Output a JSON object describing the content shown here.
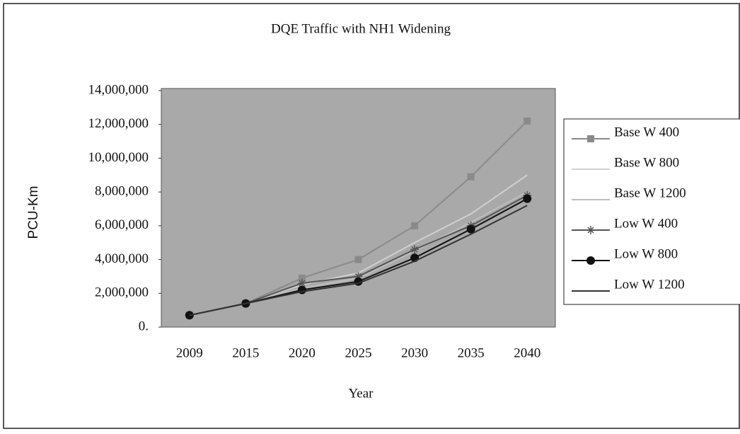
{
  "chart_data": {
    "type": "line",
    "title": "DQE Traffic with NH1 Widening",
    "x_label": "Year",
    "y_label": "PCU-Km",
    "categories": [
      "2009",
      "2015",
      "2020",
      "2025",
      "2030",
      "2035",
      "2040"
    ],
    "series": [
      {
        "name": "Base W 400",
        "color": "#8a8a8a",
        "marker": "square",
        "values": [
          700000,
          1400000,
          2900000,
          4000000,
          6000000,
          8900000,
          12200000
        ]
      },
      {
        "name": "Base W 800",
        "color": "#d0d0d0",
        "marker": "none",
        "values": [
          700000,
          1400000,
          2500000,
          3200000,
          5000000,
          6700000,
          9000000
        ]
      },
      {
        "name": "Base W 1200",
        "color": "#bdbdbd",
        "marker": "none",
        "values": [
          700000,
          1400000,
          2300000,
          2900000,
          4500000,
          6200000,
          8000000
        ]
      },
      {
        "name": "Low W 400",
        "color": "#555555",
        "marker": "star",
        "values": [
          700000,
          1400000,
          2600000,
          3000000,
          4600000,
          6000000,
          7800000
        ]
      },
      {
        "name": "Low W 800",
        "color": "#111111",
        "marker": "circle",
        "values": [
          700000,
          1400000,
          2200000,
          2700000,
          4100000,
          5800000,
          7600000
        ]
      },
      {
        "name": "Low W 1200",
        "color": "#333333",
        "marker": "none",
        "values": [
          700000,
          1400000,
          2100000,
          2600000,
          3900000,
          5500000,
          7200000
        ]
      }
    ],
    "ylim": [
      0,
      14000000
    ],
    "yticks": [
      {
        "value": 0,
        "label": "0."
      },
      {
        "value": 2000000,
        "label": "2,000,000"
      },
      {
        "value": 4000000,
        "label": "4,000,000"
      },
      {
        "value": 6000000,
        "label": "6,000,000"
      },
      {
        "value": 8000000,
        "label": "8,000,000"
      },
      {
        "value": 10000000,
        "label": "10,000,000"
      },
      {
        "value": 12000000,
        "label": "12,000,000"
      },
      {
        "value": 14000000,
        "label": "14,000,000"
      }
    ],
    "grid": false,
    "legend": "right"
  }
}
